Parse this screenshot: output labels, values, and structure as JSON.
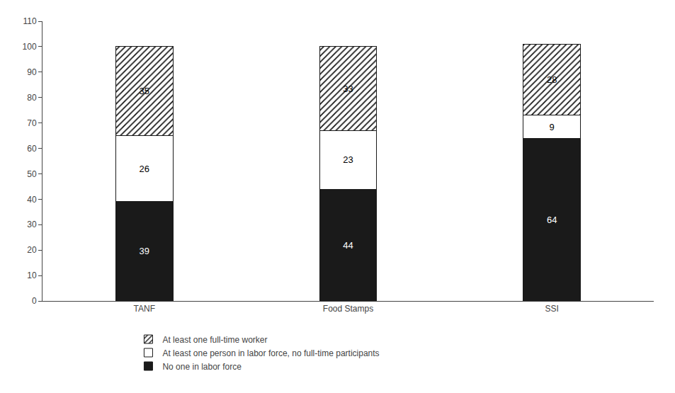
{
  "chart_data": {
    "type": "bar",
    "stacked": true,
    "categories": [
      "TANF",
      "Food Stamps",
      "SSI"
    ],
    "series": [
      {
        "name": "No one in labor force",
        "color": "#1a1a1a",
        "values": [
          39,
          44,
          64
        ]
      },
      {
        "name": "At least one person in labor force, no full-time participants",
        "color": "#ffffff",
        "values": [
          26,
          23,
          9
        ]
      },
      {
        "name": "At least one full-time worker",
        "color": "#ffffff",
        "marker": "hatch",
        "values": [
          35,
          33,
          28
        ]
      }
    ],
    "ylim": [
      0,
      110
    ],
    "yticks": [
      0,
      10,
      20,
      30,
      40,
      50,
      60,
      70,
      80,
      90,
      100,
      110
    ],
    "grid": false,
    "legend": "bottom",
    "data_labels": true
  }
}
